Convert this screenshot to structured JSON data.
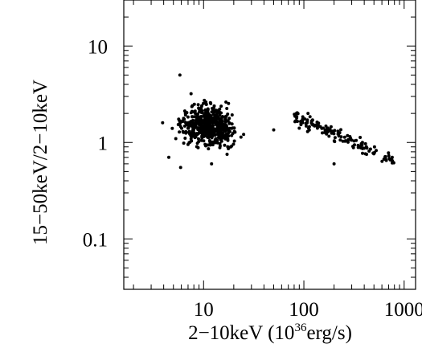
{
  "chart_data": {
    "type": "scatter",
    "xlabel": "2−10keV (10",
    "xlabel_sup": "36",
    "xlabel_tail": "erg/s)",
    "ylabel": "15−50keV/2−10keV",
    "xscale": "log",
    "yscale": "log",
    "xlim": [
      1.6,
      1300
    ],
    "ylim": [
      0.03,
      30
    ],
    "grid": false,
    "x_ticks": [
      {
        "value": 10,
        "label": "10"
      },
      {
        "value": 100,
        "label": "100"
      },
      {
        "value": 1000,
        "label": "1000"
      }
    ],
    "y_ticks": [
      {
        "value": 0.1,
        "label": "0.1"
      },
      {
        "value": 1,
        "label": "1"
      },
      {
        "value": 10,
        "label": "10"
      }
    ],
    "marker_color": "#000000",
    "clusters": [
      {
        "x_range": [
          3.8,
          55
        ],
        "ratio_center": 1.5,
        "ratio_spread": 0.16,
        "count": 560,
        "points": [
          [
            5.8,
            5.0
          ],
          [
            5.9,
            0.55
          ],
          [
            12,
            0.6
          ],
          [
            7.5,
            3.2
          ],
          [
            4.5,
            0.7
          ],
          [
            50,
            1.35
          ],
          [
            3.9,
            1.6
          ]
        ]
      },
      {
        "x_range": [
          80,
          800
        ],
        "ratio_at_min": 1.85,
        "ratio_at_max": 0.65,
        "ratio_spread": 0.06,
        "count": 140,
        "points": [
          [
            85,
            1.85
          ],
          [
            110,
            2.0
          ],
          [
            200,
            0.6
          ],
          [
            780,
            0.62
          ],
          [
            760,
            0.7
          ],
          [
            420,
            0.9
          ]
        ]
      }
    ]
  }
}
